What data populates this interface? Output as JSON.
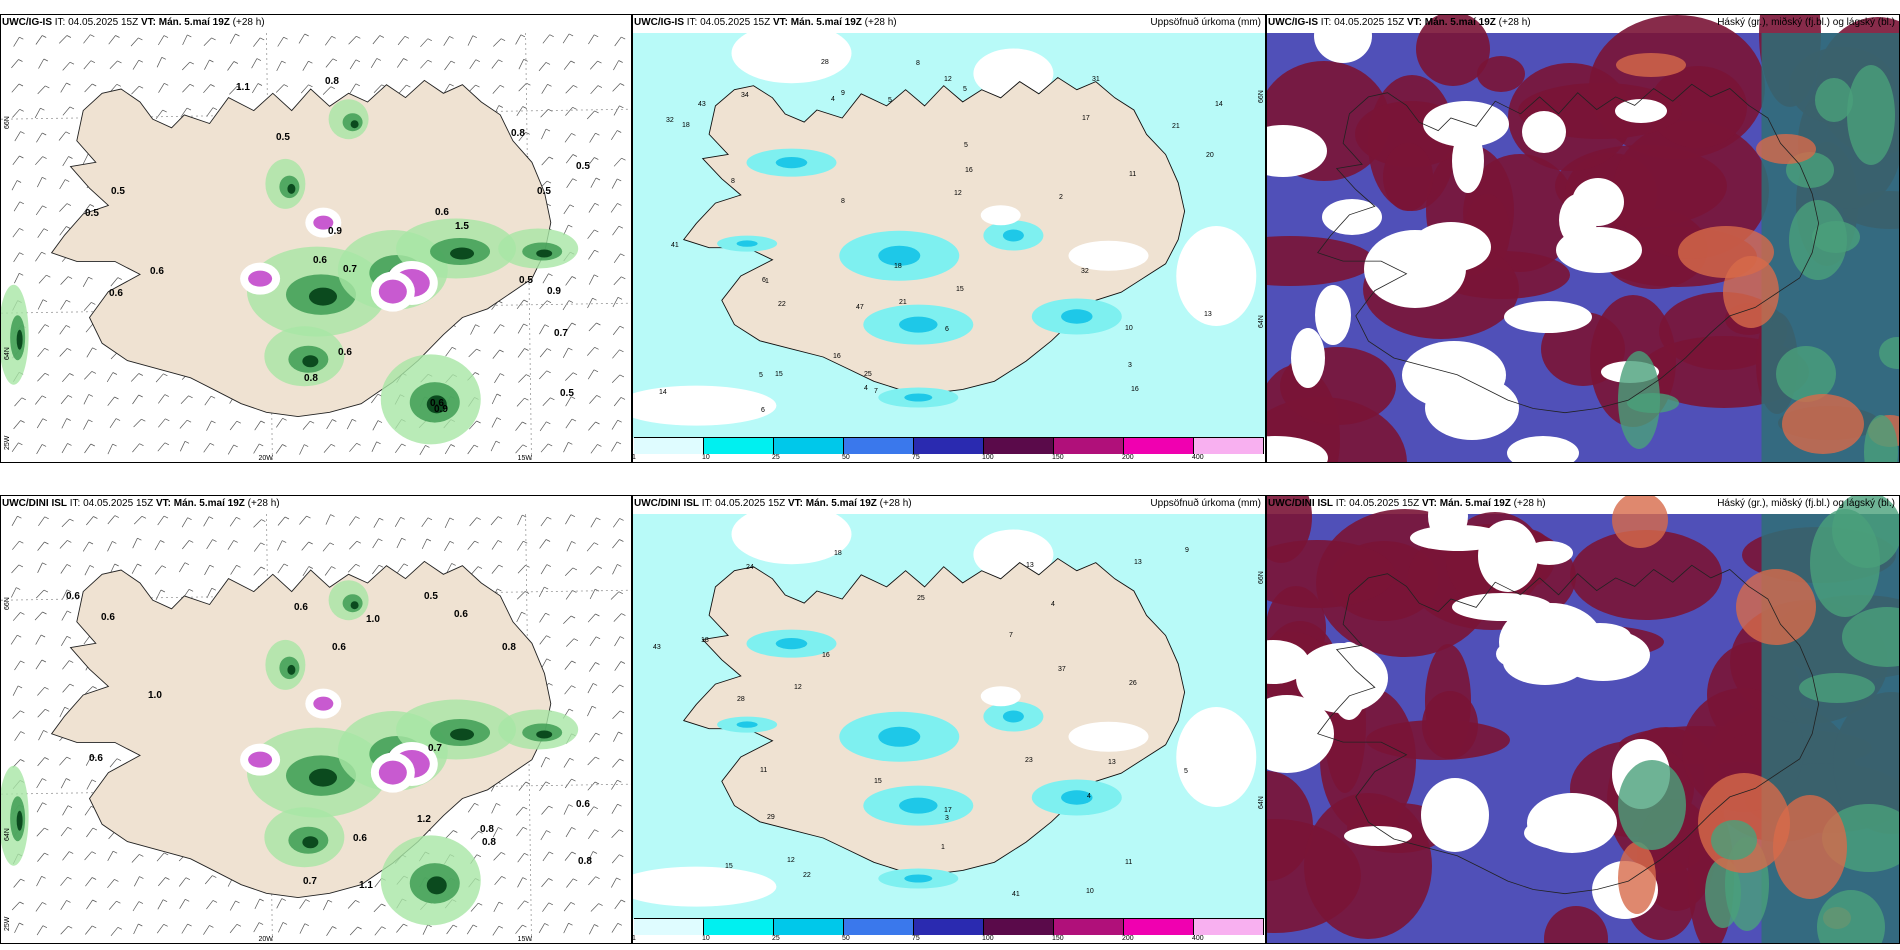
{
  "panels": [
    {
      "id": "p1",
      "model": "UWC/IG-IS",
      "it_label": "IT:",
      "it_value": "04.05.2025 15Z",
      "vt_label": "VT:",
      "vt_value": "Mán. 5.maí 19Z",
      "lead": "(+28 h)",
      "right_title": "",
      "point_labels": [
        "0.7",
        "0.5",
        "0.8",
        "0.5",
        "0.5",
        "0.6",
        "0.5",
        "0.6",
        "0.7",
        "0.8",
        "0.8",
        "0.6",
        "1.5",
        "0.9",
        "0.6",
        "0.5",
        "0.6",
        "1.1",
        "0.5",
        "0.5",
        "0.6",
        "0.9",
        "0.9"
      ],
      "axis_labels": [
        "66N",
        "64N",
        "25W",
        "20W",
        "15W"
      ]
    },
    {
      "id": "p2",
      "model": "UWC/IG-IS",
      "it_label": "IT:",
      "it_value": "04.05.2025 15Z",
      "vt_label": "VT:",
      "vt_value": "Mán. 5.maí 19Z",
      "lead": "(+28 h)",
      "right_title": "Uppsöfnuð úrkoma (mm)",
      "point_labels": [
        "9",
        "10",
        "16",
        "6",
        "8",
        "5",
        "2",
        "1",
        "14",
        "22",
        "25",
        "20",
        "18",
        "4",
        "3",
        "5",
        "47",
        "21",
        "32",
        "16",
        "15",
        "11",
        "43",
        "41",
        "28",
        "21",
        "17",
        "32",
        "15",
        "14",
        "12",
        "31",
        "34",
        "13",
        "18",
        "12",
        "7",
        "6",
        "5",
        "8",
        "4",
        "6",
        "16",
        "8",
        "5"
      ],
      "axis_labels": [
        "66N",
        "64N"
      ]
    },
    {
      "id": "p3",
      "model": "UWC/IG-IS",
      "it_label": "IT:",
      "it_value": "04.05.2025 15Z",
      "vt_label": "VT:",
      "vt_value": "Mán. 5.maí 19Z",
      "lead": "(+28 h)",
      "right_title": "Háský (gr.), miðský (fj.bl.) og lágský (bl.)",
      "point_labels": [],
      "axis_labels": []
    },
    {
      "id": "p4",
      "model": "UWC/DINI ISL",
      "it_label": "IT:",
      "it_value": "04.05.2025 15Z",
      "vt_label": "VT:",
      "vt_value": "Mán. 5.maí 19Z",
      "lead": "(+28 h)",
      "right_title": "",
      "point_labels": [
        "0.6",
        "0.8",
        "0.6",
        "0.8",
        "0.7",
        "0.6",
        "1.1",
        "0.5",
        "1.0",
        "0.6",
        "0.8",
        "1.0",
        "0.7",
        "0.6",
        "0.8",
        "0.6",
        "0.6",
        "1.2",
        "0.6"
      ],
      "axis_labels": [
        "66N",
        "64N",
        "25W",
        "20W",
        "15W"
      ]
    },
    {
      "id": "p5",
      "model": "UWC/DINI ISL",
      "it_label": "IT:",
      "it_value": "04.05.2025 15Z",
      "vt_label": "VT:",
      "vt_value": "Mán. 5.maí 19Z",
      "lead": "(+28 h)",
      "right_title": "Uppsöfnuð úrkoma (mm)",
      "point_labels": [
        "5",
        "10",
        "3",
        "15",
        "17",
        "16",
        "18",
        "4",
        "41",
        "26",
        "23",
        "13",
        "43",
        "37",
        "22",
        "24",
        "29",
        "12",
        "13",
        "25",
        "18",
        "13",
        "11",
        "28",
        "9",
        "7",
        "4",
        "15",
        "11",
        "12",
        "1"
      ],
      "axis_labels": [
        "66N",
        "64N"
      ]
    },
    {
      "id": "p6",
      "model": "UWC/DINI ISL",
      "it_label": "IT:",
      "it_value": "04.05.2025 15Z",
      "vt_label": "VT:",
      "vt_value": "Mán. 5.maí 19Z",
      "lead": "(+28 h)",
      "right_title": "Háský (gr.), miðský (fj.bl.) og lágský (bl.)",
      "point_labels": [],
      "axis_labels": []
    }
  ],
  "colorbar": {
    "ticks": [
      "1",
      "10",
      "25",
      "50",
      "75",
      "100",
      "150",
      "200",
      "400"
    ],
    "colors": [
      "#dffcff",
      "#00f0f0",
      "#00c8ea",
      "#3a78ec",
      "#2a2ab0",
      "#5a0a4a",
      "#b0107a",
      "#f000b0",
      "#f8b0f0"
    ]
  },
  "palette": {
    "land": "#efe2d2",
    "sea_light": "#b8faf8",
    "cloud_high": "#7a1436",
    "cloud_mid": "#5050b8",
    "cloud_low": "#d76a4a",
    "green": "#4aa07a"
  }
}
